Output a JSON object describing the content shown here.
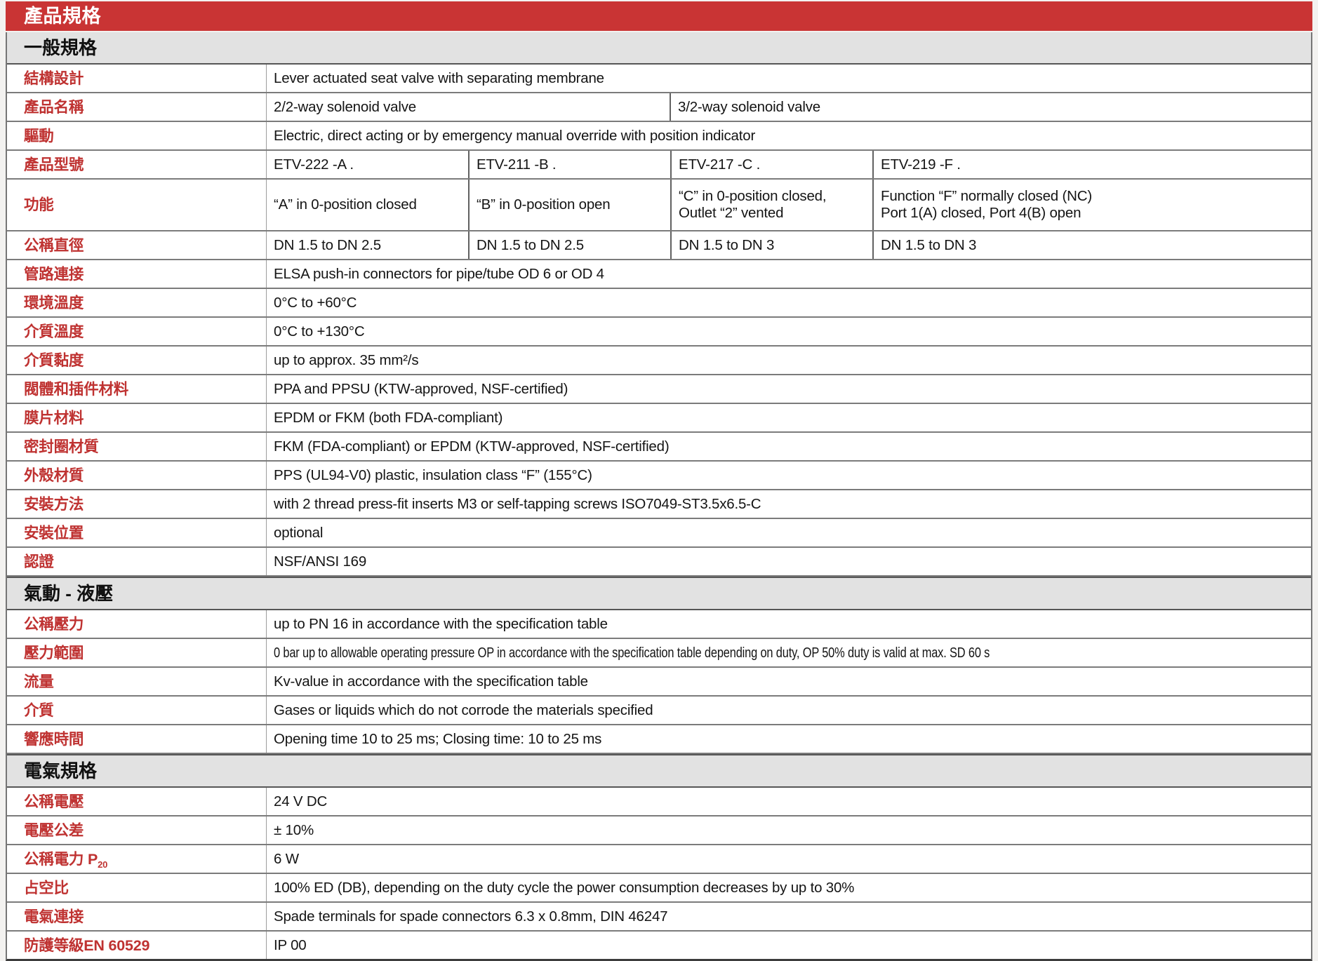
{
  "page": {
    "title": "產品規格"
  },
  "colors": {
    "header_red": "#c93434",
    "label_red": "#bf3231",
    "section_gray": "#e2e2e2"
  },
  "sections": {
    "general": {
      "heading": "一般規格",
      "rows": {
        "design": {
          "label": "結構設計",
          "value": "Lever actuated seat valve with separating membrane"
        },
        "product_name": {
          "label": "產品名稱",
          "values": [
            "2/2-way solenoid valve",
            "3/2-way solenoid valve"
          ]
        },
        "actuation": {
          "label": "驅動",
          "value": "Electric, direct acting or by emergency manual override with position indicator"
        },
        "model": {
          "label": "產品型號",
          "values": [
            "ETV-222 -A .",
            "ETV-211 -B .",
            "ETV-217 -C .",
            "ETV-219 -F ."
          ]
        },
        "function": {
          "label": "功能",
          "values": [
            [
              "“A” in 0-position closed"
            ],
            [
              "“B” in 0-position open"
            ],
            [
              "“C” in 0-position closed,",
              "Outlet “2” vented"
            ],
            [
              "Function “F” normally closed (NC)",
              "Port 1(A) closed, Port 4(B) open"
            ]
          ]
        },
        "nominal_diameter": {
          "label": "公稱直徑",
          "values": [
            "DN 1.5 to DN 2.5",
            "DN 1.5 to DN 2.5",
            "DN 1.5 to DN 3",
            "DN 1.5 to DN 3"
          ]
        },
        "pipe_connection": {
          "label": "管路連接",
          "value": "ELSA push-in connectors for pipe/tube OD 6 or OD 4"
        },
        "ambient_temp": {
          "label": "環境溫度",
          "value": "0°C to +60°C"
        },
        "media_temp": {
          "label": "介質溫度",
          "value": "0°C to +130°C"
        },
        "media_viscosity": {
          "label": "介質黏度",
          "value": "up to approx. 35 mm²/s"
        },
        "body_material": {
          "label": "閥體和插件材料",
          "value": "PPA and PPSU (KTW-approved, NSF-certified)"
        },
        "membrane_material": {
          "label": "膜片材料",
          "value": "EPDM or FKM (both FDA-compliant)"
        },
        "seal_material": {
          "label": "密封圈材質",
          "value": "FKM (FDA-compliant) or EPDM (KTW-approved, NSF-certified)"
        },
        "housing_material": {
          "label": "外殼材質",
          "value": "PPS (UL94-V0) plastic, insulation class “F” (155°C)"
        },
        "mounting_method": {
          "label": "安裝方法",
          "value": "with 2 thread press-fit inserts M3 or self-tapping screws ISO7049-ST3.5x6.5-C"
        },
        "mounting_position": {
          "label": "安裝位置",
          "value": "optional"
        },
        "certification": {
          "label": "認證",
          "value": "NSF/ANSI 169"
        }
      }
    },
    "pneumatic": {
      "heading": "氣動 - 液壓",
      "rows": {
        "nominal_pressure": {
          "label": "公稱壓力",
          "value": "up to PN 16 in accordance with the specification table"
        },
        "pressure_range": {
          "label": "壓力範圍",
          "value": "0 bar up to allowable operating pressure OP in accordance with the specification table depending on duty, OP 50% duty is valid at max. SD 60 s"
        },
        "flow": {
          "label": "流量",
          "value": "Kv-value in accordance with the specification table"
        },
        "media": {
          "label": "介質",
          "value": "Gases or liquids which do not corrode the materials specified"
        },
        "response_time": {
          "label": "響應時間",
          "value": "Opening time 10 to 25 ms; Closing time: 10 to 25 ms"
        }
      }
    },
    "electrical": {
      "heading": "電氣規格",
      "rows": {
        "nominal_voltage": {
          "label": "公稱電壓",
          "value": "24 V DC"
        },
        "voltage_tolerance": {
          "label": "電壓公差",
          "value": "± 10%"
        },
        "nominal_power": {
          "label": "公稱電力 P",
          "label_sub": "20",
          "value": "6 W"
        },
        "duty_cycle": {
          "label": "占空比",
          "value": "100% ED (DB), depending on the duty cycle the power consumption decreases by up to 30%"
        },
        "electrical_connection": {
          "label": "電氣連接",
          "value": "Spade terminals for spade connectors 6.3 x 0.8mm, DIN 46247"
        },
        "protection_class": {
          "label": "防護等級EN 60529",
          "value": "IP 00"
        }
      }
    }
  }
}
